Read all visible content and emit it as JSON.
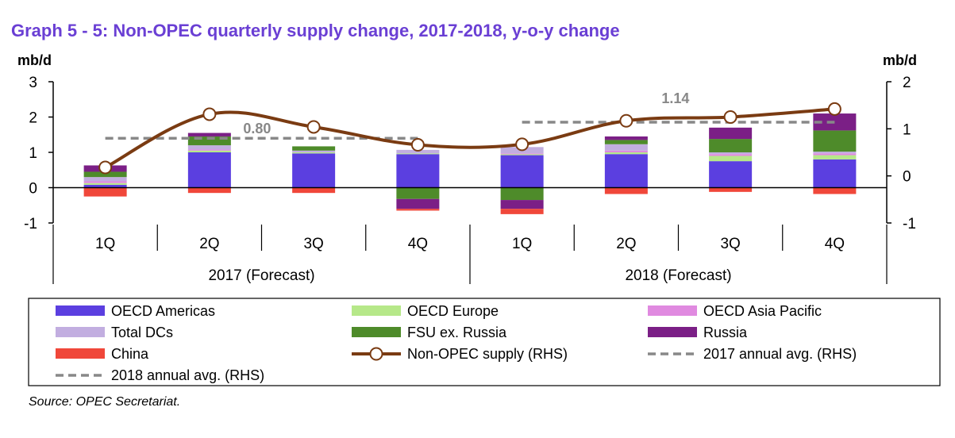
{
  "title": "Graph 5 - 5: Non-OPEC quarterly supply change, 2017-2018, y-o-y change",
  "source": "Source: OPEC Secretariat.",
  "chart_data": {
    "type": "bar",
    "stacked": true,
    "categories": [
      "1Q",
      "2Q",
      "3Q",
      "4Q",
      "1Q",
      "2Q",
      "3Q",
      "4Q"
    ],
    "groups": [
      {
        "label": "2017 (Forecast)",
        "span": [
          0,
          3
        ]
      },
      {
        "label": "2018 (Forecast)",
        "span": [
          4,
          7
        ]
      }
    ],
    "ylabel_left": "mb/d",
    "ylabel_right": "mb/d",
    "ylim_left": [
      -1,
      3
    ],
    "ylim_right": [
      -1,
      2
    ],
    "yticks_left": [
      -1,
      0,
      1,
      2,
      3
    ],
    "yticks_right": [
      -1,
      0,
      1,
      2
    ],
    "series": [
      {
        "name": "OECD Americas",
        "color": "#5b3fe0",
        "values": [
          0.08,
          1.0,
          0.97,
          0.95,
          0.92,
          0.95,
          0.75,
          0.8
        ]
      },
      {
        "name": "OECD Europe",
        "color": "#b6e889",
        "values": [
          0.05,
          0.05,
          0.03,
          0.02,
          0.03,
          0.05,
          0.15,
          0.12
        ]
      },
      {
        "name": "OECD Asia Pacific",
        "color": "#e08ae0",
        "values": [
          0.05,
          0.03,
          0.0,
          0.0,
          0.02,
          0.05,
          0.05,
          0.05
        ]
      },
      {
        "name": "Total DCs",
        "color": "#c2aee0",
        "values": [
          0.12,
          0.12,
          0.05,
          0.1,
          0.18,
          0.18,
          0.05,
          0.05
        ]
      },
      {
        "name": "FSU ex. Russia",
        "color": "#4e8b2a",
        "values": [
          0.15,
          0.25,
          0.12,
          -0.32,
          -0.35,
          0.12,
          0.38,
          0.6
        ]
      },
      {
        "name": "Russia",
        "color": "#7b1f86",
        "values": [
          0.18,
          0.1,
          0.0,
          -0.28,
          -0.25,
          0.1,
          0.32,
          0.48
        ]
      },
      {
        "name": "China",
        "color": "#f0473a",
        "values": [
          -0.25,
          -0.15,
          -0.15,
          -0.05,
          -0.15,
          -0.18,
          -0.12,
          -0.18
        ]
      }
    ],
    "lines": [
      {
        "name": "Non-OPEC supply (RHS)",
        "axis": "right",
        "color": "#7a3b12",
        "values": [
          0.18,
          1.31,
          1.04,
          0.66,
          0.67,
          1.17,
          1.25,
          1.42
        ]
      }
    ],
    "averages": [
      {
        "name": "2017 annual avg. (RHS)",
        "value": 0.8,
        "label": "0.80",
        "span": [
          0,
          3
        ]
      },
      {
        "name": "2018 annual avg. (RHS)",
        "value": 1.14,
        "label": "1.14",
        "span": [
          4,
          7
        ]
      }
    ],
    "legend_position": "bottom"
  }
}
